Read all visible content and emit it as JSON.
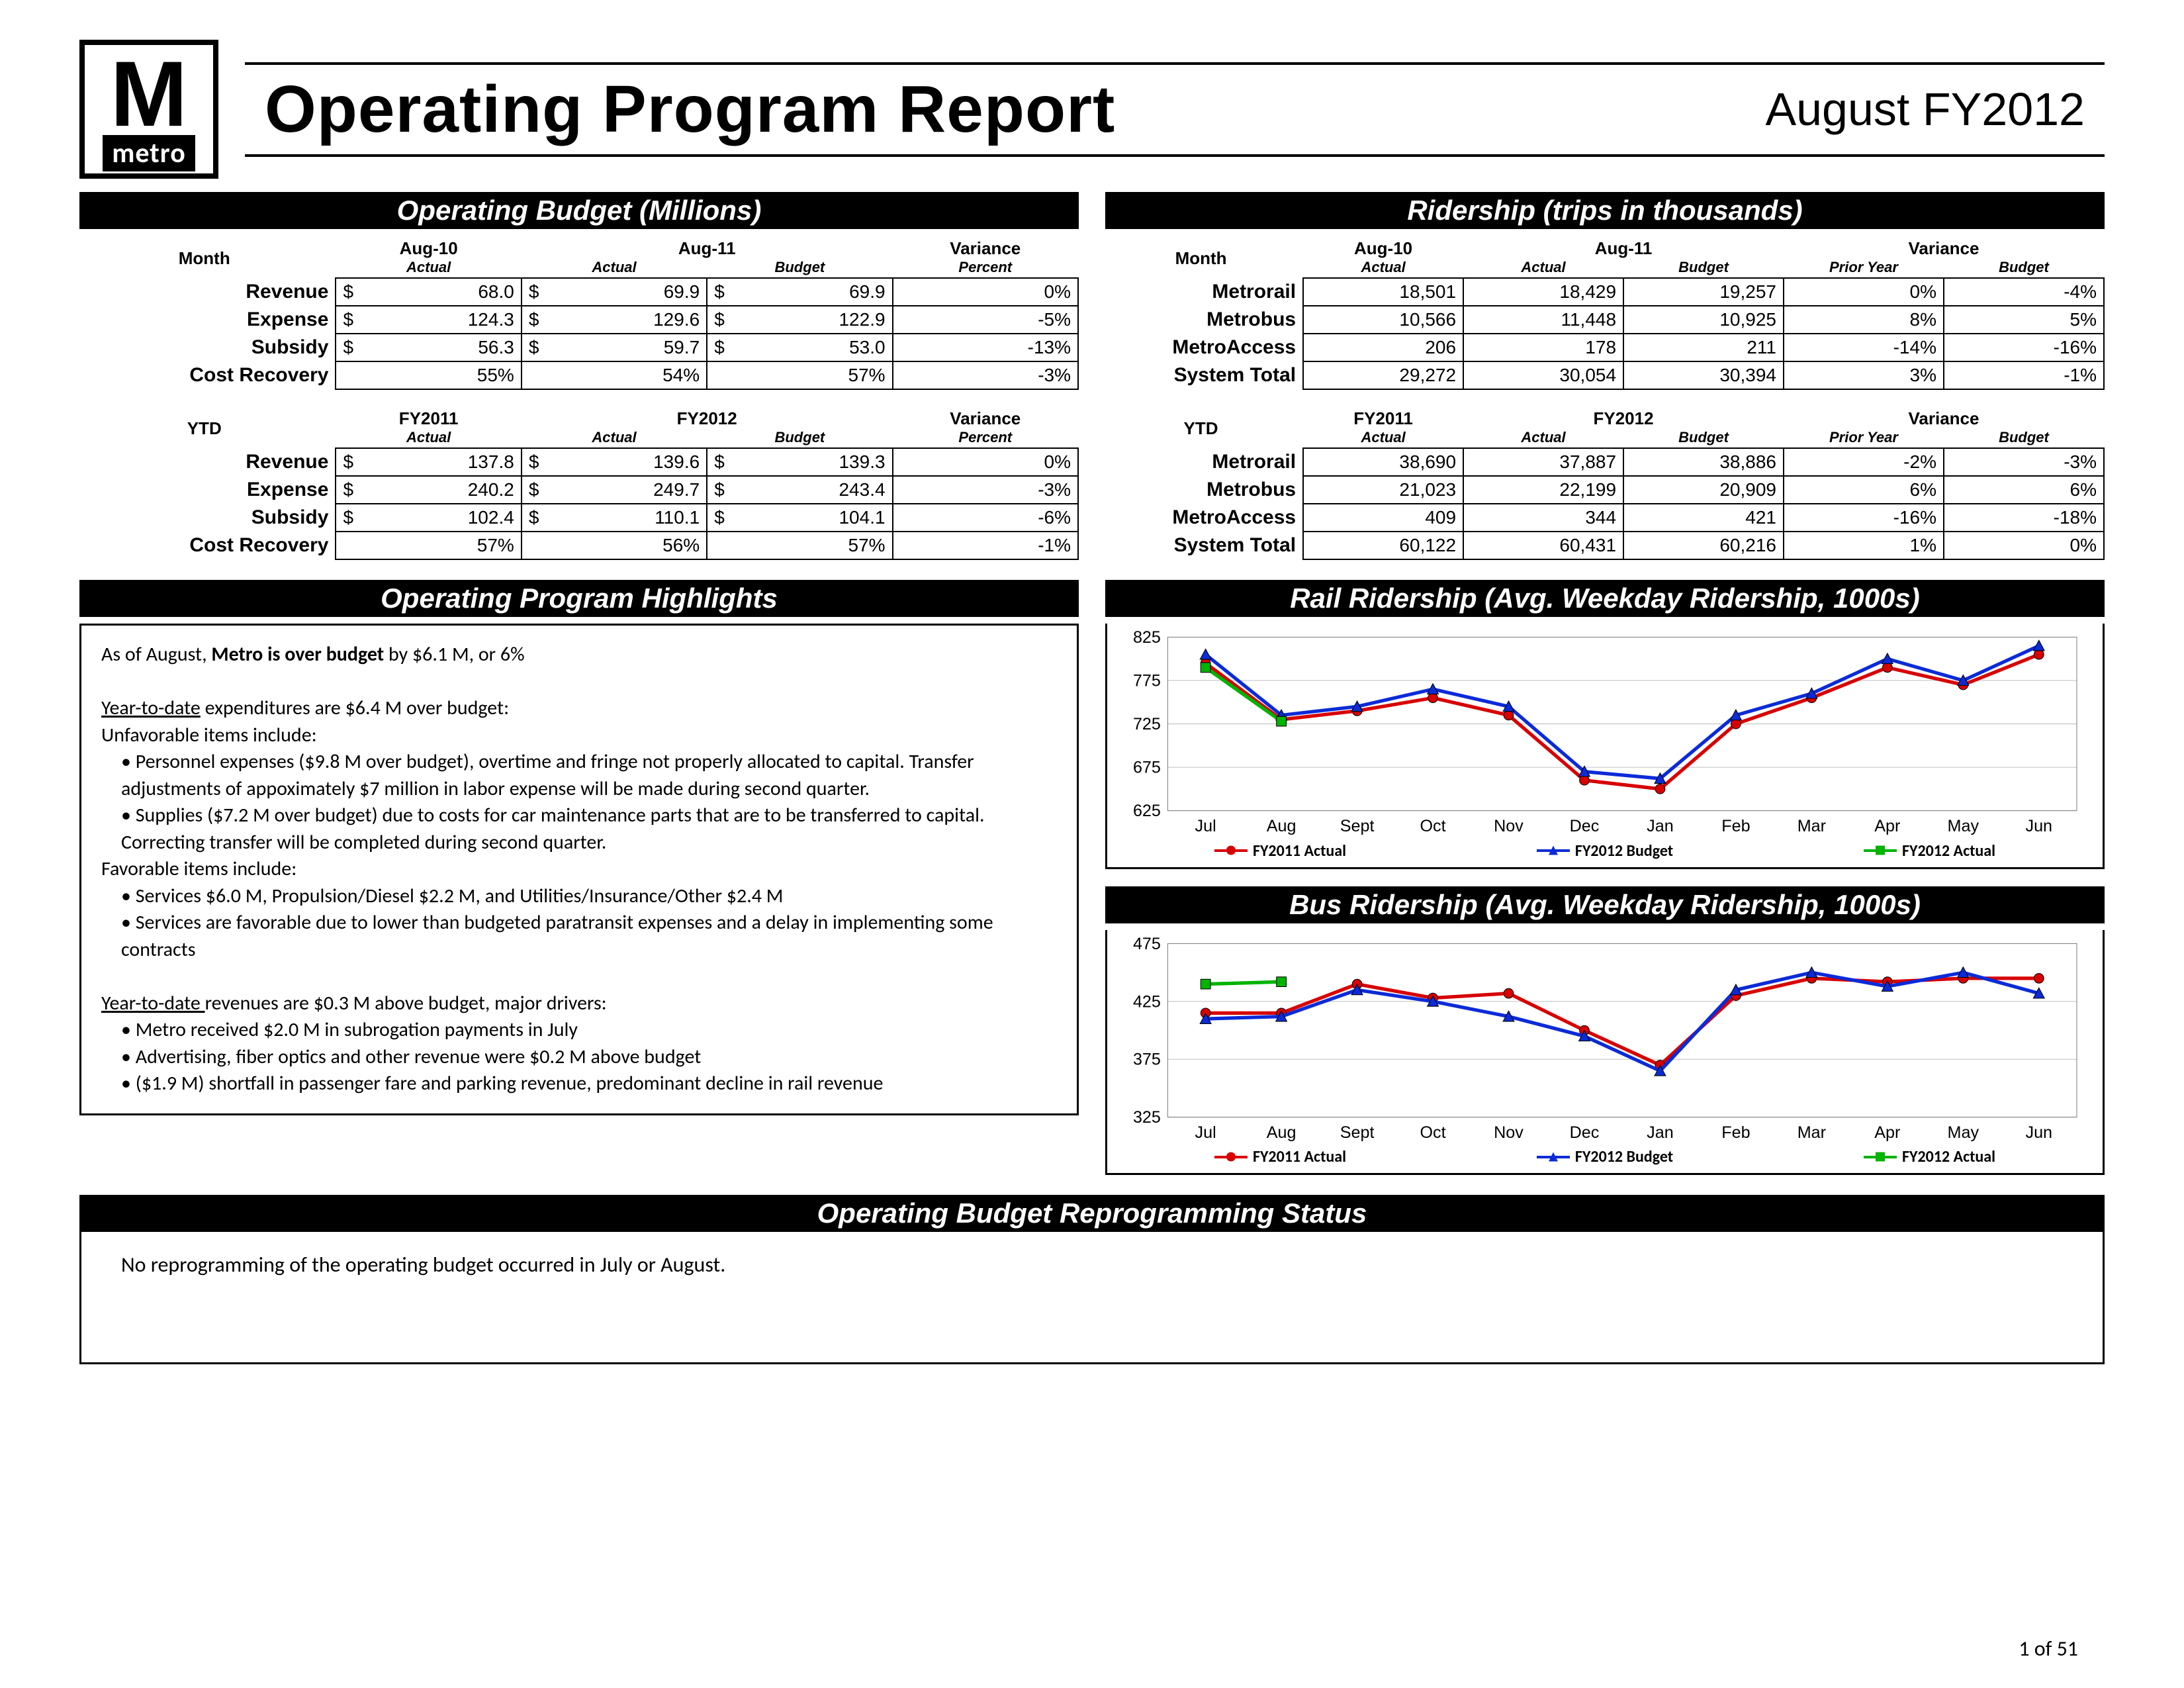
{
  "header": {
    "logo_letter": "M",
    "logo_word": "metro",
    "title": "Operating Program Report",
    "period": "August FY2012"
  },
  "page_number": "1 of 51",
  "operating_budget": {
    "section_title": "Operating Budget (Millions)",
    "month": {
      "corner": "Month",
      "super": [
        "Aug-10",
        "Aug-11",
        "",
        "Variance"
      ],
      "sub": [
        "Actual",
        "Actual",
        "Budget",
        "Percent"
      ],
      "rows": [
        {
          "label": "Revenue",
          "vals": [
            "68.0",
            "69.9",
            "69.9",
            "0%"
          ],
          "currency": [
            1,
            1,
            1,
            0
          ]
        },
        {
          "label": "Expense",
          "vals": [
            "124.3",
            "129.6",
            "122.9",
            "-5%"
          ],
          "currency": [
            1,
            1,
            1,
            0
          ]
        },
        {
          "label": "Subsidy",
          "vals": [
            "56.3",
            "59.7",
            "53.0",
            "-13%"
          ],
          "currency": [
            1,
            1,
            1,
            0
          ]
        },
        {
          "label": "Cost Recovery",
          "vals": [
            "55%",
            "54%",
            "57%",
            "-3%"
          ],
          "currency": [
            0,
            0,
            0,
            0
          ]
        }
      ]
    },
    "ytd": {
      "corner": "YTD",
      "super": [
        "FY2011",
        "FY2012",
        "",
        "Variance"
      ],
      "sub": [
        "Actual",
        "Actual",
        "Budget",
        "Percent"
      ],
      "rows": [
        {
          "label": "Revenue",
          "vals": [
            "137.8",
            "139.6",
            "139.3",
            "0%"
          ],
          "currency": [
            1,
            1,
            1,
            0
          ]
        },
        {
          "label": "Expense",
          "vals": [
            "240.2",
            "249.7",
            "243.4",
            "-3%"
          ],
          "currency": [
            1,
            1,
            1,
            0
          ]
        },
        {
          "label": "Subsidy",
          "vals": [
            "102.4",
            "110.1",
            "104.1",
            "-6%"
          ],
          "currency": [
            1,
            1,
            1,
            0
          ]
        },
        {
          "label": "Cost Recovery",
          "vals": [
            "57%",
            "56%",
            "57%",
            "-1%"
          ],
          "currency": [
            0,
            0,
            0,
            0
          ]
        }
      ]
    }
  },
  "ridership": {
    "section_title": "Ridership (trips in thousands)",
    "month": {
      "corner": "Month",
      "super": [
        "Aug-10",
        "Aug-11",
        "",
        "Variance",
        ""
      ],
      "sub": [
        "Actual",
        "Actual",
        "Budget",
        "Prior Year",
        "Budget"
      ],
      "rows": [
        {
          "label": "Metrorail",
          "vals": [
            "18,501",
            "18,429",
            "19,257",
            "0%",
            "-4%"
          ]
        },
        {
          "label": "Metrobus",
          "vals": [
            "10,566",
            "11,448",
            "10,925",
            "8%",
            "5%"
          ]
        },
        {
          "label": "MetroAccess",
          "vals": [
            "206",
            "178",
            "211",
            "-14%",
            "-16%"
          ]
        },
        {
          "label": "System Total",
          "vals": [
            "29,272",
            "30,054",
            "30,394",
            "3%",
            "-1%"
          ]
        }
      ]
    },
    "ytd": {
      "corner": "YTD",
      "super": [
        "FY2011",
        "FY2012",
        "",
        "Variance",
        ""
      ],
      "sub": [
        "Actual",
        "Actual",
        "Budget",
        "Prior Year",
        "Budget"
      ],
      "rows": [
        {
          "label": "Metrorail",
          "vals": [
            "38,690",
            "37,887",
            "38,886",
            "-2%",
            "-3%"
          ]
        },
        {
          "label": "Metrobus",
          "vals": [
            "21,023",
            "22,199",
            "20,909",
            "6%",
            "6%"
          ]
        },
        {
          "label": "MetroAccess",
          "vals": [
            "409",
            "344",
            "421",
            "-16%",
            "-18%"
          ]
        },
        {
          "label": "System Total",
          "vals": [
            "60,122",
            "60,431",
            "60,216",
            "1%",
            "0%"
          ]
        }
      ]
    }
  },
  "highlights": {
    "section_title": "Operating Program Highlights",
    "intro": "As of August, <b>Metro is over budget</b> by $6.1 M, or 6%",
    "exp_head": "<span class='u'>Year-to-date</span> expenditures are $6.4 M over budget:",
    "unfav_label": "Unfavorable items include:",
    "unfav": [
      "Personnel expenses ($9.8 M over budget), overtime and fringe not properly allocated to capital. Transfer adjustments of appoximately $7 million in labor expense will be made during second quarter.",
      "Supplies ($7.2 M over budget) due to costs for car maintenance parts that are to be transferred to capital.  Correcting transfer will be completed during second quarter."
    ],
    "fav_label": "Favorable items include:",
    "fav": [
      "Services $6.0 M, Propulsion/Diesel $2.2 M, and Utilities/Insurance/Other $2.4 M",
      "Services are favorable due to lower than budgeted paratransit expenses and a delay in implementing some contracts"
    ],
    "rev_head": "<span class='u'>Year-to-date </span>revenues are $0.3 M above budget, major drivers:",
    "rev": [
      "Metro received $2.0 M in subrogation payments in July",
      "Advertising, fiber optics and other revenue were $0.2 M above budget",
      "($1.9 M) shortfall in passenger fare and parking revenue, predominant decline in rail revenue"
    ]
  },
  "rail_chart": {
    "title": "Rail Ridership (Avg. Weekday Ridership, 1000s)",
    "months": [
      "Jul",
      "Aug",
      "Sept",
      "Oct",
      "Nov",
      "Dec",
      "Jan",
      "Feb",
      "Mar",
      "Apr",
      "May",
      "Jun"
    ],
    "ymin": 625,
    "ymax": 825,
    "ystep": 50,
    "series": [
      {
        "name": "FY2011 Actual",
        "color": "#d80000",
        "marker": "circle",
        "data": [
          795,
          730,
          740,
          755,
          735,
          660,
          650,
          725,
          755,
          790,
          770,
          805
        ]
      },
      {
        "name": "FY2012 Budget",
        "color": "#0b2bd8",
        "marker": "triangle",
        "data": [
          805,
          735,
          745,
          765,
          745,
          670,
          662,
          735,
          760,
          800,
          775,
          815
        ]
      },
      {
        "name": "FY2012 Actual",
        "color": "#00b400",
        "marker": "square",
        "data": [
          790,
          728
        ]
      }
    ]
  },
  "bus_chart": {
    "title": "Bus Ridership (Avg. Weekday Ridership, 1000s)",
    "months": [
      "Jul",
      "Aug",
      "Sept",
      "Oct",
      "Nov",
      "Dec",
      "Jan",
      "Feb",
      "Mar",
      "Apr",
      "May",
      "Jun"
    ],
    "ymin": 325,
    "ymax": 475,
    "ystep": 50,
    "series": [
      {
        "name": "FY2011 Actual",
        "color": "#d80000",
        "marker": "circle",
        "data": [
          415,
          415,
          440,
          428,
          432,
          400,
          370,
          430,
          445,
          442,
          445,
          445
        ]
      },
      {
        "name": "FY2012 Budget",
        "color": "#0b2bd8",
        "marker": "triangle",
        "data": [
          410,
          412,
          435,
          425,
          412,
          395,
          365,
          435,
          450,
          438,
          450,
          432
        ]
      },
      {
        "name": "FY2012 Actual",
        "color": "#00b400",
        "marker": "square",
        "data": [
          440,
          442
        ]
      }
    ]
  },
  "reprogramming": {
    "title": "Operating Budget Reprogramming Status",
    "text": "No reprogramming of the operating budget occurred in July or August."
  },
  "colors": {
    "black": "#000000",
    "white": "#ffffff",
    "grid": "#bfbfbf"
  }
}
